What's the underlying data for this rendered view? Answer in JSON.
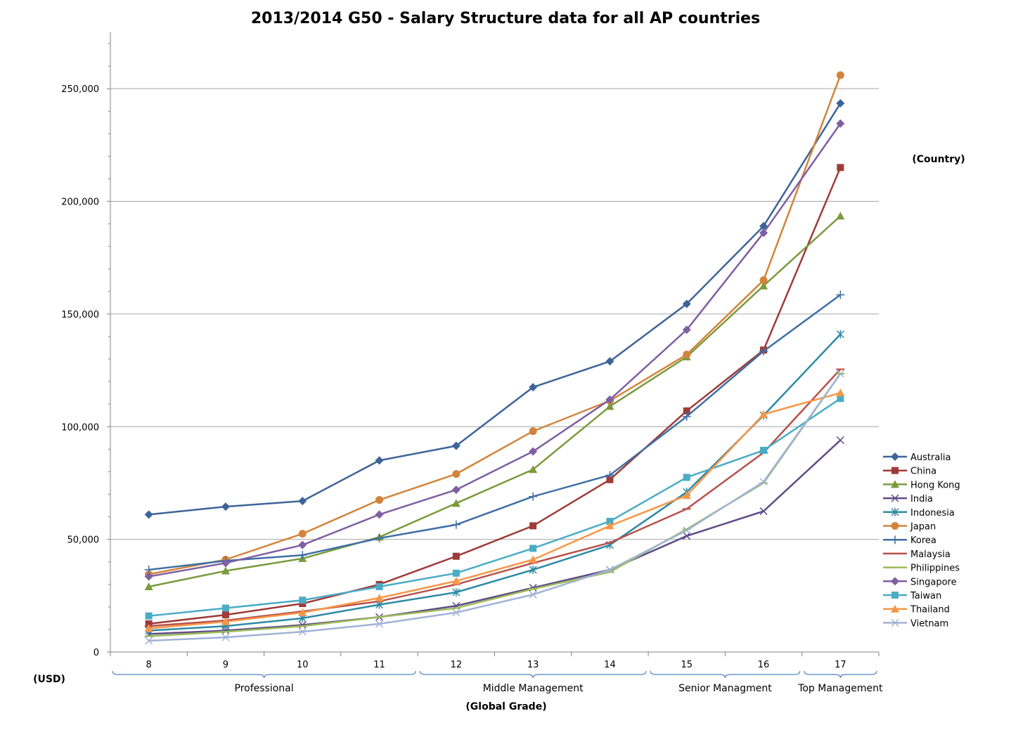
{
  "chart_data": {
    "type": "line",
    "title": "2013/2014 G50 - Salary Structure data for all AP countries",
    "xlabel": "(Global Grade)",
    "ylabel": "(USD)",
    "legend_title": "(Country)",
    "legend_position": "right",
    "grid": true,
    "ylim": [
      0,
      275000
    ],
    "yticks": [
      0,
      50000,
      100000,
      150000,
      200000,
      250000
    ],
    "ytick_labels": [
      "0",
      "50,000",
      "100,000",
      "150,000",
      "200,000",
      "250,000"
    ],
    "categories": [
      "8",
      "9",
      "10",
      "11",
      "12",
      "13",
      "14",
      "15",
      "16",
      "17"
    ],
    "groups": [
      {
        "label": "Professional",
        "from": "8",
        "to": "11"
      },
      {
        "label": "Middle Management",
        "from": "12",
        "to": "14"
      },
      {
        "label": "Senior Managment",
        "from": "15",
        "to": "16"
      },
      {
        "label": "Top Management",
        "from": "17",
        "to": "17"
      }
    ],
    "series": [
      {
        "name": "Australia",
        "color": "#3d6499",
        "marker": "diamond",
        "values": [
          61000,
          64500,
          67000,
          85000,
          91500,
          117500,
          129000,
          154500,
          189000,
          243500
        ]
      },
      {
        "name": "China",
        "color": "#9e3b38",
        "marker": "square",
        "values": [
          12500,
          16500,
          21500,
          30000,
          42500,
          56000,
          76500,
          107000,
          134000,
          215000
        ]
      },
      {
        "name": "Hong Kong",
        "color": "#7b9a3c",
        "marker": "triangle",
        "values": [
          29000,
          36000,
          41500,
          51000,
          66000,
          81000,
          109000,
          131000,
          162500,
          193500
        ]
      },
      {
        "name": "India",
        "color": "#5f4a86",
        "marker": "x",
        "values": [
          8000,
          9500,
          12000,
          15500,
          20500,
          28500,
          36500,
          51500,
          62500,
          94000
        ]
      },
      {
        "name": "Indonesia",
        "color": "#2e8aa5",
        "marker": "asterisk",
        "values": [
          9500,
          11500,
          15000,
          21000,
          26500,
          36500,
          47500,
          71000,
          105000,
          141000
        ]
      },
      {
        "name": "Japan",
        "color": "#d3843b",
        "marker": "circle",
        "values": [
          34500,
          41000,
          52500,
          67500,
          79000,
          98000,
          111500,
          132000,
          165000,
          256000
        ]
      },
      {
        "name": "Korea",
        "color": "#3f6fa5",
        "marker": "plus",
        "values": [
          36500,
          40500,
          43000,
          50500,
          56500,
          69000,
          78500,
          104500,
          133500,
          158500
        ]
      },
      {
        "name": "Malaysia",
        "color": "#b8504b",
        "marker": "dash",
        "values": [
          11500,
          14000,
          18000,
          22500,
          30000,
          39500,
          48500,
          63500,
          88500,
          125500
        ]
      },
      {
        "name": "Philippines",
        "color": "#9bbb59",
        "marker": "dash",
        "values": [
          7000,
          9000,
          11500,
          15500,
          19500,
          28000,
          35500,
          54500,
          75000,
          123500
        ]
      },
      {
        "name": "Singapore",
        "color": "#7f5fa3",
        "marker": "diamond",
        "values": [
          33500,
          39500,
          47500,
          61000,
          72000,
          89000,
          112000,
          143000,
          186000,
          234500
        ]
      },
      {
        "name": "Taiwan",
        "color": "#4aacc5",
        "marker": "square",
        "values": [
          16000,
          19500,
          23000,
          29000,
          35000,
          46000,
          58000,
          77500,
          89500,
          112500
        ]
      },
      {
        "name": "Thailand",
        "color": "#f79646",
        "marker": "triangle",
        "values": [
          10500,
          13500,
          17500,
          24000,
          31500,
          41000,
          56000,
          69500,
          105500,
          115000
        ]
      },
      {
        "name": "Vietnam",
        "color": "#a0b3d6",
        "marker": "x",
        "values": [
          5000,
          6500,
          9000,
          12500,
          17500,
          25500,
          36500,
          54000,
          75500,
          123500
        ]
      }
    ]
  }
}
